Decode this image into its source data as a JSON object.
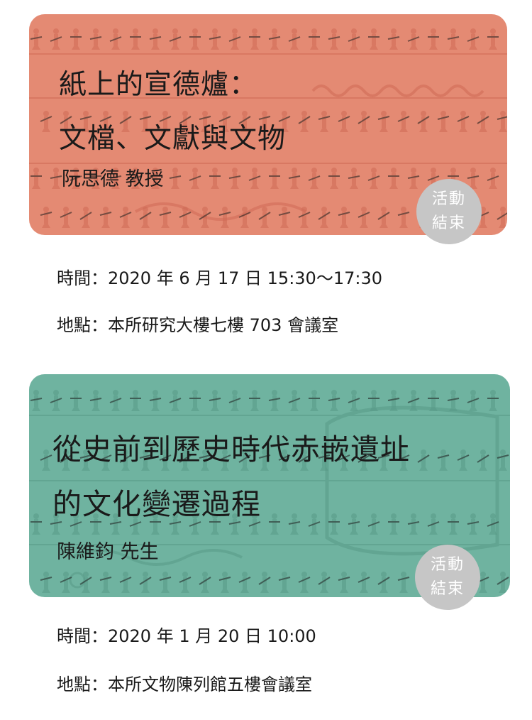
{
  "events": [
    {
      "title_lines": [
        "紙上的宣德爐：",
        "文檔、文獻與文物"
      ],
      "speaker": "阮思德 教授",
      "badge_lines": [
        "活動",
        "結束"
      ],
      "time": "時間：2020 年 6 月 17 日 15:30～17:30",
      "place": "地點：本所研究大樓七樓 703 會議室",
      "card_color": "#e48a73",
      "pattern_color": "#cf6a55"
    },
    {
      "title_lines": [
        "從史前到歷史時代赤嵌遺址",
        "的文化變遷過程"
      ],
      "speaker": "陳維鈞 先生",
      "badge_lines": [
        "活動",
        "結束"
      ],
      "time": "時間：2020 年 1 月 20 日 10:00",
      "place": "地點：本所文物陳列館五樓會議室",
      "card_color": "#6fb3a0",
      "pattern_color": "#589a87"
    }
  ],
  "badge_color": "#c6c6c6"
}
